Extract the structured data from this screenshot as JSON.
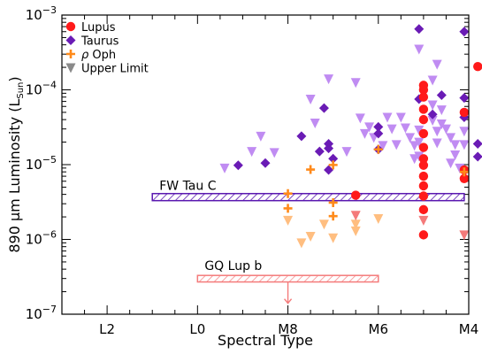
{
  "chart_data": {
    "type": "scatter",
    "xlabel": "Spectral Type",
    "ylabel": "890 μm Luminosity (L",
    "ylabel_sub": "Sun",
    "ylabel_close": ")",
    "x_axis": {
      "reversed": true,
      "min": -3,
      "max": 6,
      "ticks": [
        {
          "v": -2,
          "label": "L2"
        },
        {
          "v": 0,
          "label": "L0"
        },
        {
          "v": 2,
          "label": "M8"
        },
        {
          "v": 4,
          "label": "M6"
        },
        {
          "v": 6,
          "label": "M4"
        }
      ]
    },
    "y_axis": {
      "scale": "log",
      "min": 1e-07,
      "max": 0.001,
      "ticks": [
        {
          "v": 1e-07,
          "base": "10",
          "exp": "−7"
        },
        {
          "v": 1e-06,
          "base": "10",
          "exp": "−6"
        },
        {
          "v": 1e-05,
          "base": "10",
          "exp": "−5"
        },
        {
          "v": 0.0001,
          "base": "10",
          "exp": "−4"
        },
        {
          "v": 0.001,
          "base": "10",
          "exp": "−3"
        }
      ]
    },
    "legend": {
      "position": "top-left",
      "entries": [
        {
          "label": "Lupus",
          "marker": "circle",
          "color": "#ff1a1a"
        },
        {
          "label": "Taurus",
          "marker": "diamond",
          "color": "#6a1bb5"
        },
        {
          "label_prefix": "ρ",
          "label": " Oph",
          "marker": "plus",
          "color": "#ff8a1a"
        },
        {
          "label": "Upper Limit",
          "marker": "triangle-down",
          "color": "#8a8a8a"
        }
      ]
    },
    "colors": {
      "lupus": "#ff1a1a",
      "lupus_limit": "#f47a7a",
      "taurus": "#6a1bb5",
      "taurus_limit": "#c08cf2",
      "oph": "#ff8a1a",
      "oph_limit": "#ffbe80"
    },
    "series": [
      {
        "name": "Lupus",
        "marker": "circle",
        "points": [
          [
            5.0,
            0.000115
          ],
          [
            5.0,
            0.0001
          ],
          [
            5.0,
            8e-05
          ],
          [
            5.0,
            5.5e-05
          ],
          [
            5.0,
            4e-05
          ],
          [
            5.0,
            2.6e-05
          ],
          [
            5.0,
            1.7e-05
          ],
          [
            5.0,
            1.2e-05
          ],
          [
            5.0,
            9.8e-06
          ],
          [
            5.0,
            7e-06
          ],
          [
            5.0,
            5.2e-06
          ],
          [
            5.0,
            3.8e-06
          ],
          [
            5.0,
            2.5e-06
          ],
          [
            5.0,
            1.15e-06
          ],
          [
            5.9,
            5e-05
          ],
          [
            5.9,
            8.5e-06
          ],
          [
            5.9,
            6.5e-06
          ],
          [
            6.2,
            0.000205
          ],
          [
            3.5,
            3.9e-06
          ]
        ]
      },
      {
        "name": "Taurus",
        "marker": "diamond",
        "points": [
          [
            0.9,
            9.8e-06
          ],
          [
            1.5,
            1.05e-05
          ],
          [
            2.3,
            2.4e-05
          ],
          [
            2.7,
            1.5e-05
          ],
          [
            2.8,
            5.7e-05
          ],
          [
            2.9,
            1.9e-05
          ],
          [
            2.9,
            1.65e-05
          ],
          [
            2.9,
            8.5e-06
          ],
          [
            3.0,
            1.2e-05
          ],
          [
            4.0,
            3.2e-05
          ],
          [
            4.0,
            2.6e-05
          ],
          [
            4.0,
            1.6e-05
          ],
          [
            4.9,
            0.00065
          ],
          [
            4.9,
            7.5e-05
          ],
          [
            5.2,
            4.7e-05
          ],
          [
            5.4,
            8.5e-05
          ],
          [
            5.9,
            0.0006
          ],
          [
            5.9,
            7.8e-05
          ],
          [
            5.9,
            4.3e-05
          ],
          [
            6.2,
            1.9e-05
          ],
          [
            6.2,
            1.28e-05
          ]
        ]
      },
      {
        "name": "ρ Oph",
        "marker": "plus",
        "points": [
          [
            2.0,
            4.1e-06
          ],
          [
            2.0,
            2.6e-06
          ],
          [
            2.5,
            8.6e-06
          ],
          [
            3.0,
            9.9e-06
          ],
          [
            3.0,
            3.1e-06
          ],
          [
            3.0,
            2.05e-06
          ],
          [
            4.0,
            1.6e-05
          ],
          [
            5.9,
            8e-06
          ]
        ]
      },
      {
        "name": "Taurus upper limits",
        "marker": "triangle-down",
        "points": [
          [
            0.6,
            9e-06
          ],
          [
            1.2,
            1.5e-05
          ],
          [
            1.4,
            2.4e-05
          ],
          [
            1.7,
            1.45e-05
          ],
          [
            2.5,
            7.5e-05
          ],
          [
            2.9,
            0.00014
          ],
          [
            2.6,
            3.6e-05
          ],
          [
            3.3,
            1.5e-05
          ],
          [
            3.5,
            0.000125
          ],
          [
            3.6,
            4.2e-05
          ],
          [
            3.7,
            2.6e-05
          ],
          [
            3.8,
            3.2e-05
          ],
          [
            3.9,
            2.3e-05
          ],
          [
            4.1,
            1.8e-05
          ],
          [
            4.2,
            4.3e-05
          ],
          [
            4.3,
            3e-05
          ],
          [
            4.4,
            1.85e-05
          ],
          [
            4.5,
            4.3e-05
          ],
          [
            4.6,
            3.1e-05
          ],
          [
            4.7,
            2.3e-05
          ],
          [
            4.8,
            1.2e-05
          ],
          [
            4.8,
            1.8e-05
          ],
          [
            4.9,
            2.9e-05
          ],
          [
            4.9,
            2e-05
          ],
          [
            4.9,
            1.3e-05
          ],
          [
            5.2,
            0.000135
          ],
          [
            5.2,
            6.3e-05
          ],
          [
            5.2,
            3.9e-05
          ],
          [
            5.3,
            2.8e-05
          ],
          [
            5.3,
            1.95e-05
          ],
          [
            5.4,
            5.4e-05
          ],
          [
            5.4,
            3.5e-05
          ],
          [
            5.5,
            3e-05
          ],
          [
            5.6,
            2.3e-05
          ],
          [
            5.7,
            1.85e-05
          ],
          [
            5.7,
            1.35e-05
          ],
          [
            5.6,
            1.05e-05
          ],
          [
            5.8,
            9e-06
          ],
          [
            5.9,
            2.8e-05
          ],
          [
            5.9,
            1.85e-05
          ],
          [
            4.9,
            0.00035
          ],
          [
            5.3,
            0.00022
          ]
        ]
      },
      {
        "name": "ρ Oph upper limits",
        "marker": "triangle-down",
        "points": [
          [
            2.0,
            1.8e-06
          ],
          [
            2.3,
            9e-07
          ],
          [
            2.5,
            1.1e-06
          ],
          [
            2.8,
            1.6e-06
          ],
          [
            3.0,
            1.05e-06
          ],
          [
            3.5,
            1.6e-06
          ],
          [
            3.5,
            1.3e-06
          ],
          [
            4.0,
            1.9e-06
          ]
        ]
      },
      {
        "name": "Lupus upper limits",
        "marker": "triangle-down",
        "points": [
          [
            3.5,
            2.1e-06
          ],
          [
            5.0,
            1.8e-06
          ],
          [
            5.9,
            1.15e-06
          ]
        ]
      }
    ],
    "annotations": [
      {
        "label": "FW Tau C",
        "x0": -1.0,
        "x1": 5.9,
        "y0": 3.3e-06,
        "y1": 4.1e-06,
        "text_at": [
          -1.0,
          4.6e-06
        ],
        "style": "hatched",
        "color": "#5a18b0",
        "arrow": false
      },
      {
        "label": "GQ Lup b",
        "x0": 0.0,
        "x1": 4.0,
        "y0": 2.7e-07,
        "y1": 3.3e-07,
        "text_at": [
          0.0,
          3.9e-07
        ],
        "style": "hatched",
        "color": "#f47a7a",
        "arrow": true,
        "arrow_x": 2.0,
        "arrow_to": 1.4e-07
      }
    ]
  }
}
